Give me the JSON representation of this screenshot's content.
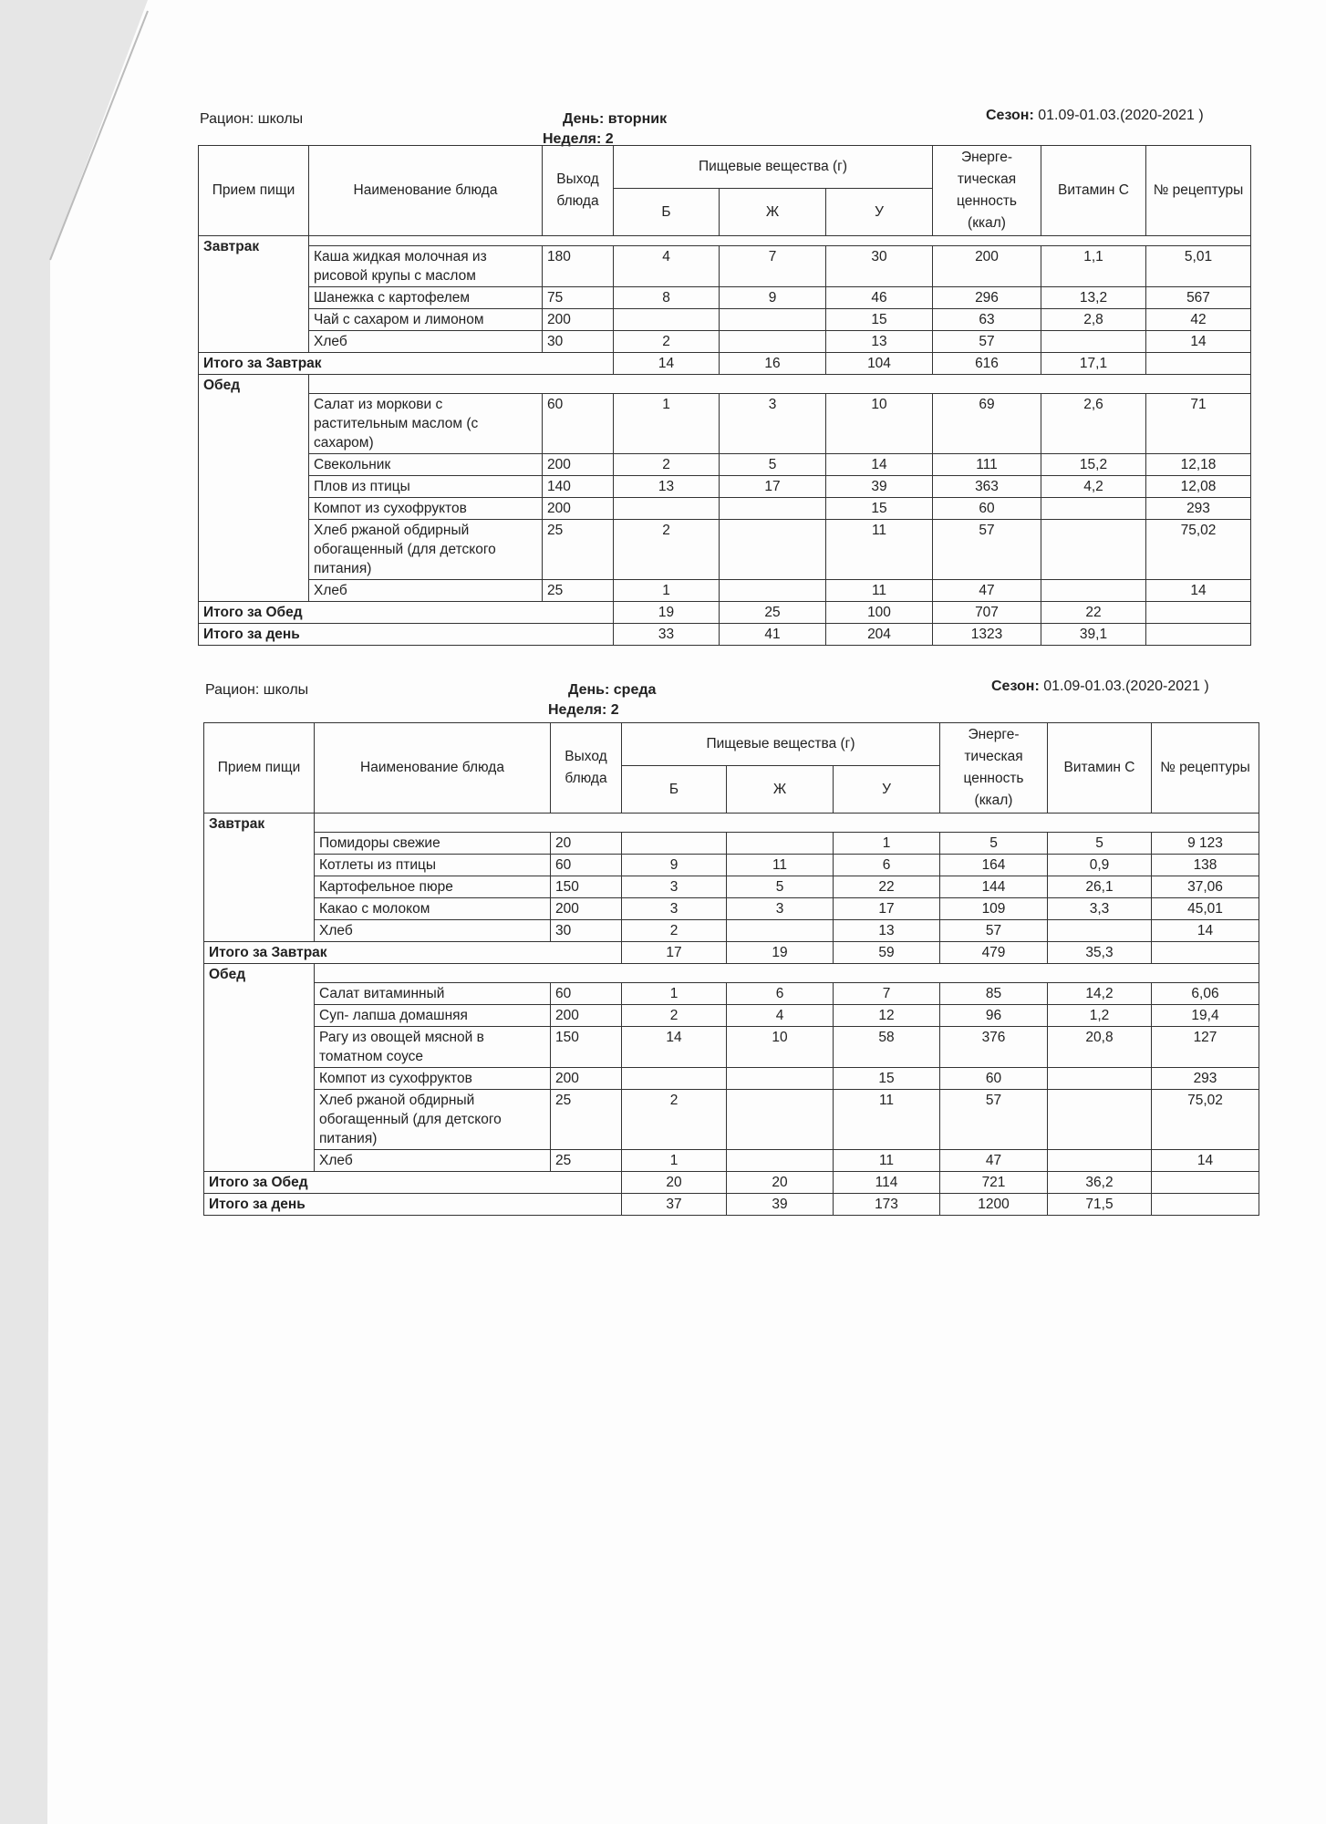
{
  "columns": {
    "meal": "Прием пищи",
    "dish": "Наименование блюда",
    "output": "Выход блюда",
    "nutrients": "Пищевые вещества (г)",
    "b": "Б",
    "zh": "Ж",
    "u": "У",
    "energy": "Энерге-тическая ценность (ккал)",
    "vitc": "Витамин С",
    "recipe": "№ рецептуры"
  },
  "menus": [
    {
      "ration_label": "Рацион:",
      "ration_value": "школы",
      "day_label": "День:",
      "day_value": "вторник",
      "week_label": "Неделя:",
      "week_value": "2",
      "season_label": "Сезон:",
      "season_value": "01.09-01.03.(2020-2021 )",
      "sections": [
        {
          "meal": "Завтрак",
          "items": [
            {
              "name": "Каша жидкая молочная из рисовой крупы с маслом",
              "out": "180",
              "b": "4",
              "zh": "7",
              "u": "30",
              "kcal": "200",
              "vitc": "1,1",
              "recipe": "5,01"
            },
            {
              "name": "Шанежка с картофелем",
              "out": "75",
              "b": "8",
              "zh": "9",
              "u": "46",
              "kcal": "296",
              "vitc": "13,2",
              "recipe": "567"
            },
            {
              "name": "Чай с сахаром и лимоном",
              "out": "200",
              "b": "",
              "zh": "",
              "u": "15",
              "kcal": "63",
              "vitc": "2,8",
              "recipe": "42"
            },
            {
              "name": "Хлеб",
              "out": "30",
              "b": "2",
              "zh": "",
              "u": "13",
              "kcal": "57",
              "vitc": "",
              "recipe": "14"
            }
          ],
          "total": {
            "label": "Итого за Завтрак",
            "b": "14",
            "zh": "16",
            "u": "104",
            "kcal": "616",
            "vitc": "17,1",
            "recipe": ""
          }
        },
        {
          "meal": "Обед",
          "items": [
            {
              "name": "Салат из моркови с растительным маслом (с сахаром)",
              "out": "60",
              "b": "1",
              "zh": "3",
              "u": "10",
              "kcal": "69",
              "vitc": "2,6",
              "recipe": "71"
            },
            {
              "name": "Свекольник",
              "out": "200",
              "b": "2",
              "zh": "5",
              "u": "14",
              "kcal": "111",
              "vitc": "15,2",
              "recipe": "12,18"
            },
            {
              "name": "Плов из птицы",
              "out": "140",
              "b": "13",
              "zh": "17",
              "u": "39",
              "kcal": "363",
              "vitc": "4,2",
              "recipe": "12,08"
            },
            {
              "name": "Компот из сухофруктов",
              "out": "200",
              "b": "",
              "zh": "",
              "u": "15",
              "kcal": "60",
              "vitc": "",
              "recipe": "293"
            },
            {
              "name": "Хлеб ржаной обдирный обогащенный (для детского питания)",
              "out": "25",
              "b": "2",
              "zh": "",
              "u": "11",
              "kcal": "57",
              "vitc": "",
              "recipe": "75,02"
            },
            {
              "name": "Хлеб",
              "out": "25",
              "b": "1",
              "zh": "",
              "u": "11",
              "kcal": "47",
              "vitc": "",
              "recipe": "14"
            }
          ],
          "total": {
            "label": "Итого за Обед",
            "b": "19",
            "zh": "25",
            "u": "100",
            "kcal": "707",
            "vitc": "22",
            "recipe": ""
          }
        }
      ],
      "day_total": {
        "label": "Итого за день",
        "b": "33",
        "zh": "41",
        "u": "204",
        "kcal": "1323",
        "vitc": "39,1",
        "recipe": ""
      }
    },
    {
      "ration_label": "Рацион:",
      "ration_value": "школы",
      "day_label": "День:",
      "day_value": "среда",
      "week_label": "Неделя:",
      "week_value": "2",
      "season_label": "Сезон:",
      "season_value": "01.09-01.03.(2020-2021 )",
      "sections": [
        {
          "meal": "Завтрак",
          "items": [
            {
              "name": "Помидоры свежие",
              "out": "20",
              "b": "",
              "zh": "",
              "u": "1",
              "kcal": "5",
              "vitc": "5",
              "recipe": "9 123"
            },
            {
              "name": "Котлеты из птицы",
              "out": "60",
              "b": "9",
              "zh": "11",
              "u": "6",
              "kcal": "164",
              "vitc": "0,9",
              "recipe": "138"
            },
            {
              "name": "Картофельное пюре",
              "out": "150",
              "b": "3",
              "zh": "5",
              "u": "22",
              "kcal": "144",
              "vitc": "26,1",
              "recipe": "37,06"
            },
            {
              "name": "Какао с молоком",
              "out": "200",
              "b": "3",
              "zh": "3",
              "u": "17",
              "kcal": "109",
              "vitc": "3,3",
              "recipe": "45,01"
            },
            {
              "name": "Хлеб",
              "out": "30",
              "b": "2",
              "zh": "",
              "u": "13",
              "kcal": "57",
              "vitc": "",
              "recipe": "14"
            }
          ],
          "total": {
            "label": "Итого за Завтрак",
            "b": "17",
            "zh": "19",
            "u": "59",
            "kcal": "479",
            "vitc": "35,3",
            "recipe": ""
          }
        },
        {
          "meal": "Обед",
          "items": [
            {
              "name": "Салат витаминный",
              "out": "60",
              "b": "1",
              "zh": "6",
              "u": "7",
              "kcal": "85",
              "vitc": "14,2",
              "recipe": "6,06"
            },
            {
              "name": "Суп- лапша домашняя",
              "out": "200",
              "b": "2",
              "zh": "4",
              "u": "12",
              "kcal": "96",
              "vitc": "1,2",
              "recipe": "19,4"
            },
            {
              "name": "Рагу из овощей мясной в томатном соусе",
              "out": "150",
              "b": "14",
              "zh": "10",
              "u": "58",
              "kcal": "376",
              "vitc": "20,8",
              "recipe": "127"
            },
            {
              "name": "Компот из сухофруктов",
              "out": "200",
              "b": "",
              "zh": "",
              "u": "15",
              "kcal": "60",
              "vitc": "",
              "recipe": "293"
            },
            {
              "name": "Хлеб ржаной обдирный обогащенный (для детского питания)",
              "out": "25",
              "b": "2",
              "zh": "",
              "u": "11",
              "kcal": "57",
              "vitc": "",
              "recipe": "75,02"
            },
            {
              "name": "Хлеб",
              "out": "25",
              "b": "1",
              "zh": "",
              "u": "11",
              "kcal": "47",
              "vitc": "",
              "recipe": "14"
            }
          ],
          "total": {
            "label": "Итого за Обед",
            "b": "20",
            "zh": "20",
            "u": "114",
            "kcal": "721",
            "vitc": "36,2",
            "recipe": ""
          }
        }
      ],
      "day_total": {
        "label": "Итого за день",
        "b": "37",
        "zh": "39",
        "u": "173",
        "kcal": "1200",
        "vitc": "71,5",
        "recipe": ""
      }
    }
  ]
}
